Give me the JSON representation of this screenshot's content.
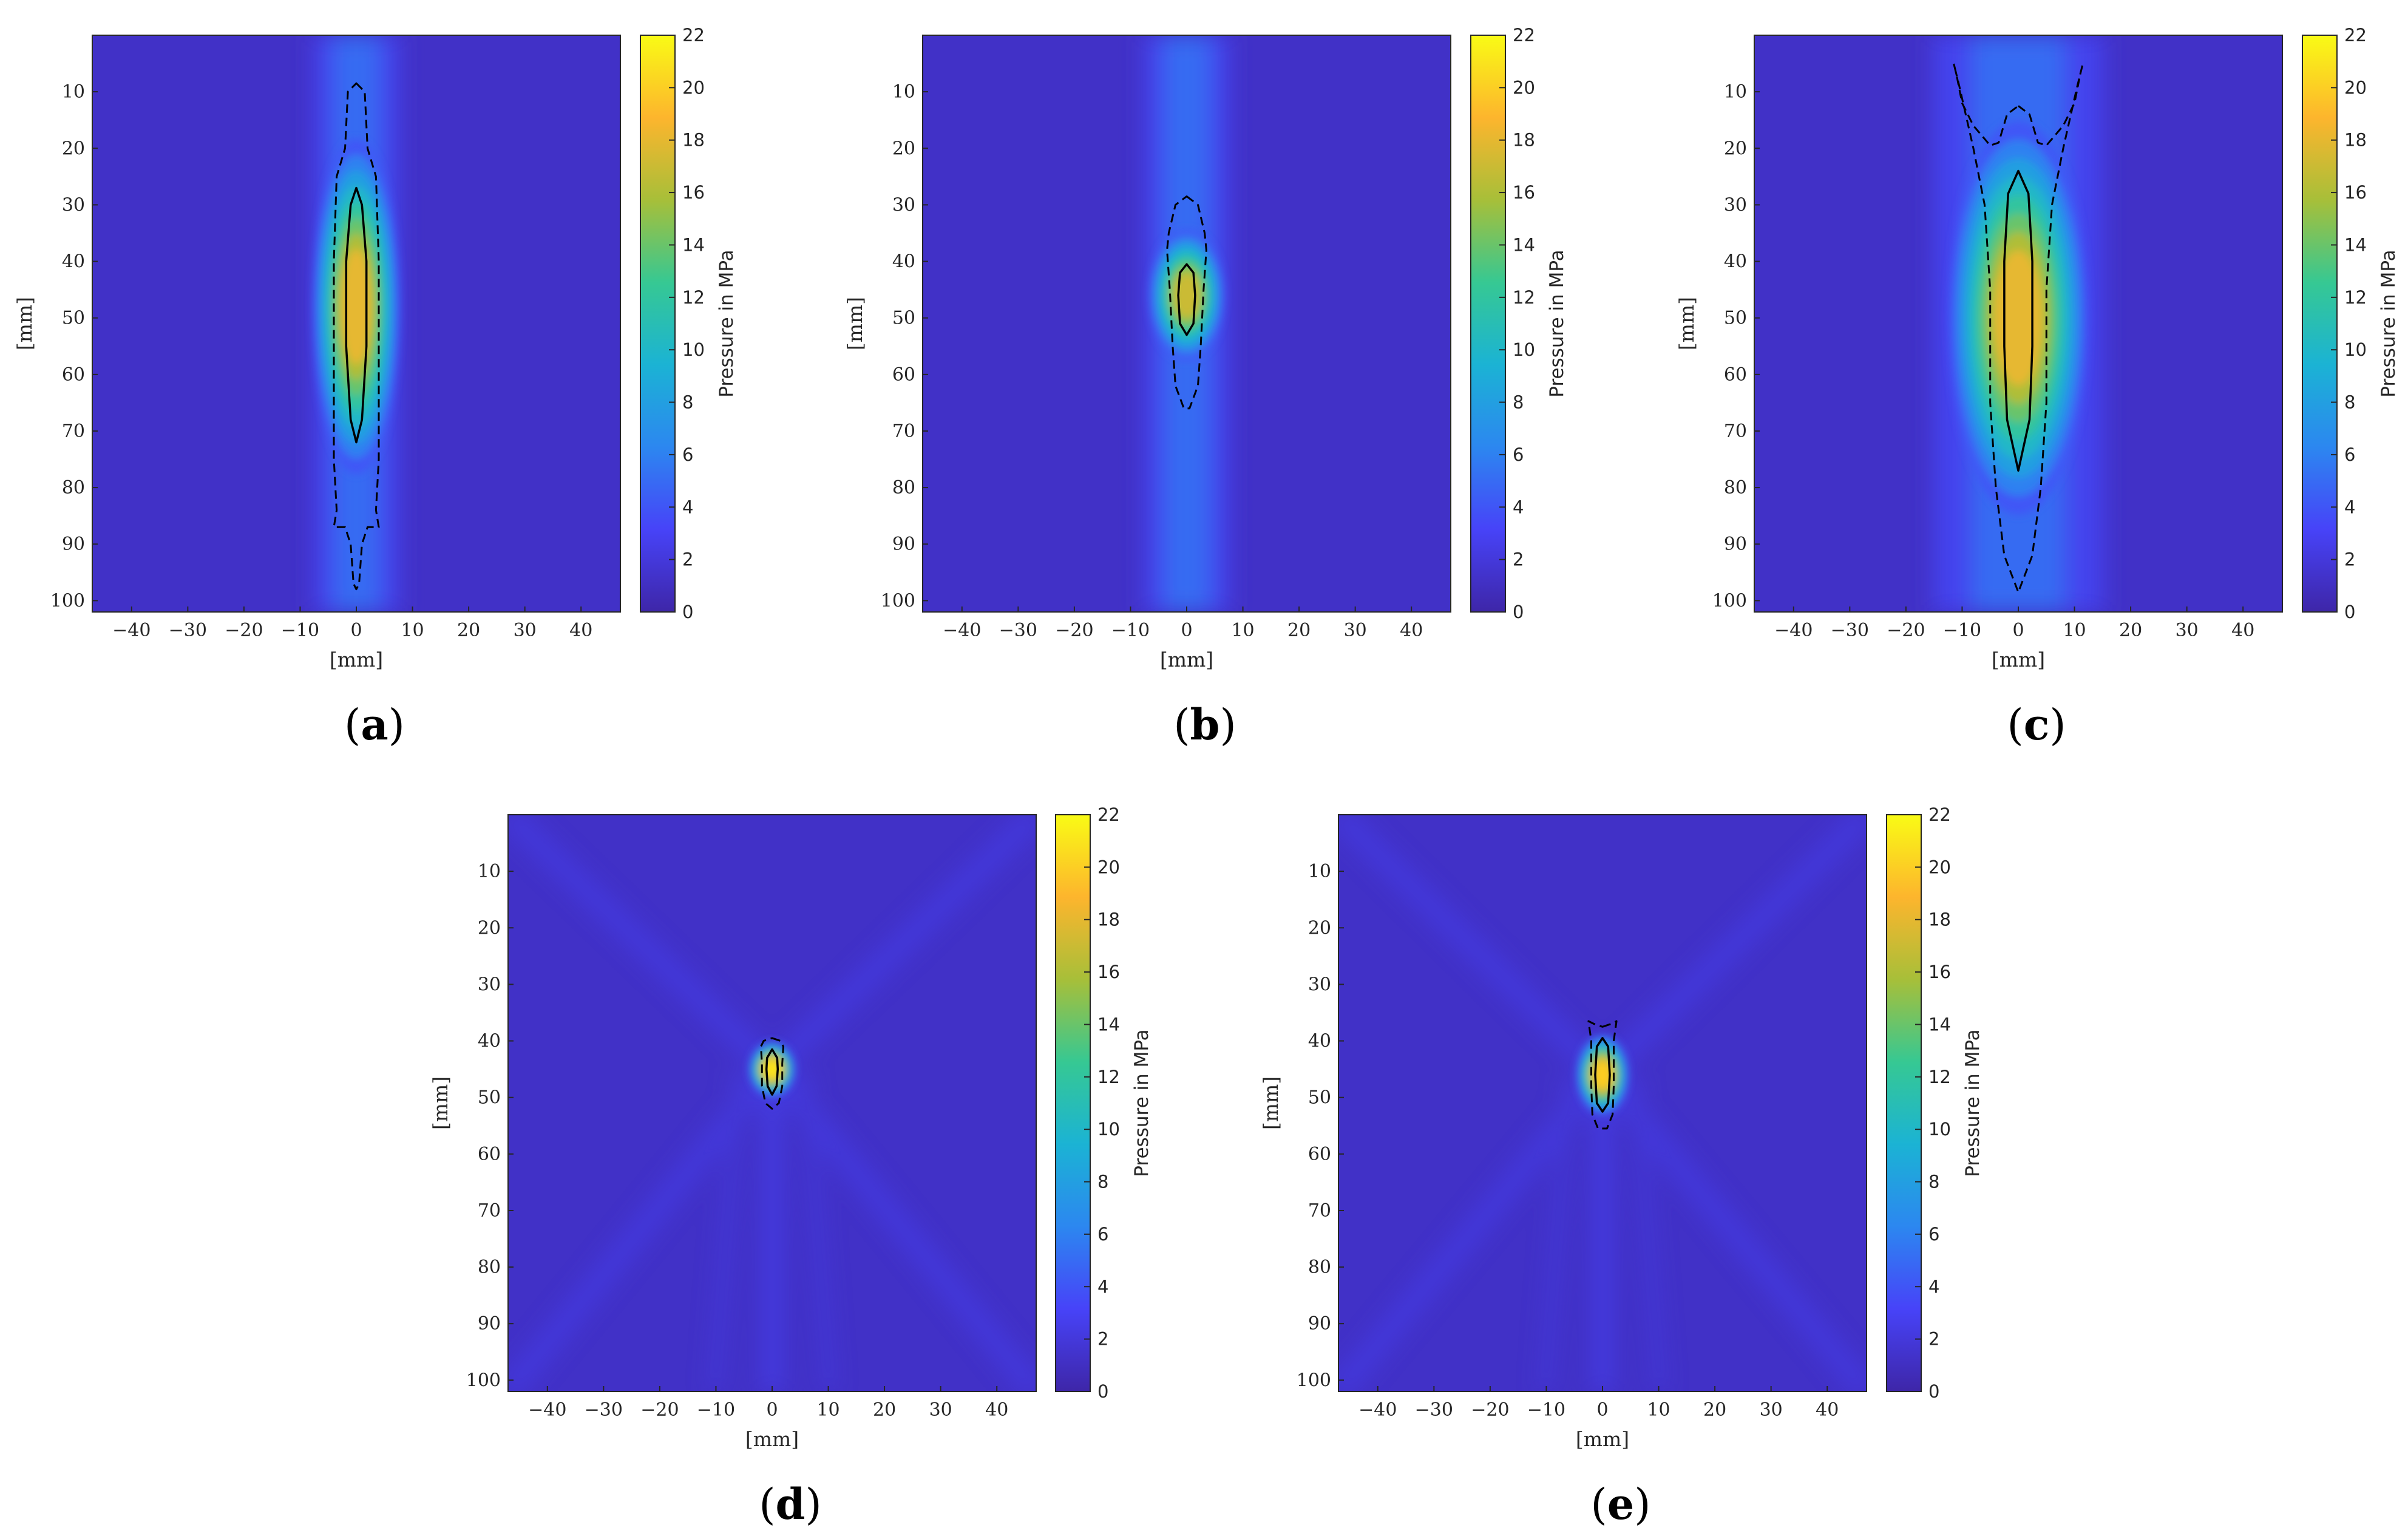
{
  "colors": {
    "cmap": [
      "#3e26a8",
      "#4743f8",
      "#2c87f0",
      "#1bb3d4",
      "#36c893",
      "#a7bf39",
      "#fdb52d",
      "#f9fb15"
    ],
    "contour": "#000000"
  },
  "chart_data": [
    {
      "type": "heatmap",
      "label": "(a)",
      "label_letter": "a",
      "xlabel": "[mm]",
      "ylabel": "[mm]",
      "cbar_label": "Pressure in MPa",
      "xlim": [
        -47,
        47
      ],
      "ylim": [
        102,
        0
      ],
      "clim": [
        0,
        22
      ],
      "xticks": [
        -40,
        -30,
        -20,
        -10,
        0,
        10,
        20,
        30,
        40
      ],
      "yticks": [
        10,
        20,
        30,
        40,
        50,
        60,
        70,
        80,
        90,
        100
      ],
      "cticks": [
        0,
        2,
        4,
        6,
        8,
        10,
        12,
        14,
        16,
        18,
        20,
        22
      ],
      "focus": {
        "x": 0,
        "y": 48,
        "peak": 18
      },
      "contour_solid": [
        [
          0,
          27
        ],
        [
          1,
          30
        ],
        [
          1.8,
          40
        ],
        [
          1.8,
          55
        ],
        [
          1,
          68
        ],
        [
          0,
          72
        ],
        [
          -1,
          68
        ],
        [
          -1.8,
          55
        ],
        [
          -1.8,
          40
        ],
        [
          -1,
          30
        ]
      ],
      "contour_dashed": [
        [
          0,
          8.5
        ],
        [
          1.5,
          10
        ],
        [
          2,
          20
        ],
        [
          3.5,
          25
        ],
        [
          4,
          40
        ],
        [
          4,
          60
        ],
        [
          4,
          75
        ],
        [
          3.5,
          84
        ],
        [
          4,
          87
        ],
        [
          2,
          87
        ],
        [
          1,
          90
        ],
        [
          0.5,
          97
        ],
        [
          0,
          98
        ],
        [
          -0.5,
          97
        ],
        [
          -1,
          90
        ],
        [
          -2,
          87
        ],
        [
          -4,
          87
        ],
        [
          -3.5,
          84
        ],
        [
          -4,
          75
        ],
        [
          -4,
          60
        ],
        [
          -4,
          40
        ],
        [
          -3.5,
          25
        ],
        [
          -2,
          20
        ],
        [
          -1.5,
          10
        ]
      ]
    },
    {
      "type": "heatmap",
      "label": "(b)",
      "label_letter": "b",
      "xlabel": "[mm]",
      "ylabel": "[mm]",
      "cbar_label": "Pressure in MPa",
      "xlim": [
        -47,
        47
      ],
      "ylim": [
        102,
        0
      ],
      "clim": [
        0,
        22
      ],
      "xticks": [
        -40,
        -30,
        -20,
        -10,
        0,
        10,
        20,
        30,
        40
      ],
      "yticks": [
        10,
        20,
        30,
        40,
        50,
        60,
        70,
        80,
        90,
        100
      ],
      "cticks": [
        0,
        2,
        4,
        6,
        8,
        10,
        12,
        14,
        16,
        18,
        20,
        22
      ],
      "focus": {
        "x": 0,
        "y": 46,
        "peak": 17
      },
      "contour_solid": [
        [
          0,
          40.5
        ],
        [
          1.2,
          42
        ],
        [
          1.5,
          46
        ],
        [
          1.2,
          51
        ],
        [
          0,
          53
        ],
        [
          -1.2,
          51
        ],
        [
          -1.5,
          46
        ],
        [
          -1.2,
          42
        ]
      ],
      "contour_dashed": [
        [
          0,
          28.5
        ],
        [
          2,
          30
        ],
        [
          3.2,
          35
        ],
        [
          3.5,
          38
        ],
        [
          3,
          45
        ],
        [
          2.5,
          55
        ],
        [
          2,
          62
        ],
        [
          0.5,
          66
        ],
        [
          -0.5,
          66
        ],
        [
          -2,
          62
        ],
        [
          -2.5,
          55
        ],
        [
          -3,
          45
        ],
        [
          -3.5,
          38
        ],
        [
          -3.2,
          35
        ],
        [
          -2,
          30
        ]
      ]
    },
    {
      "type": "heatmap",
      "label": "(c)",
      "label_letter": "c",
      "xlabel": "[mm]",
      "ylabel": "[mm]",
      "cbar_label": "Pressure in MPa",
      "xlim": [
        -47,
        47
      ],
      "ylim": [
        102,
        0
      ],
      "clim": [
        0,
        22
      ],
      "xticks": [
        -40,
        -30,
        -20,
        -10,
        0,
        10,
        20,
        30,
        40
      ],
      "yticks": [
        10,
        20,
        30,
        40,
        50,
        60,
        70,
        80,
        90,
        100
      ],
      "cticks": [
        0,
        2,
        4,
        6,
        8,
        10,
        12,
        14,
        16,
        18,
        20,
        22
      ],
      "focus": {
        "x": 0,
        "y": 50,
        "peak": 18
      },
      "contour_solid": [
        [
          0,
          24
        ],
        [
          1.8,
          28
        ],
        [
          2.5,
          40
        ],
        [
          2.5,
          55
        ],
        [
          2,
          68
        ],
        [
          0,
          77
        ],
        [
          -2,
          68
        ],
        [
          -2.5,
          55
        ],
        [
          -2.5,
          40
        ],
        [
          -1.8,
          28
        ]
      ],
      "contour_dashed": [
        [
          0,
          12.5
        ],
        [
          2,
          14
        ],
        [
          3.5,
          19
        ],
        [
          5,
          19.5
        ],
        [
          8,
          16
        ],
        [
          10,
          12
        ],
        [
          11,
          7
        ],
        [
          11.5,
          5
        ],
        [
          10.5,
          9
        ],
        [
          8,
          20
        ],
        [
          6,
          30
        ],
        [
          5,
          45
        ],
        [
          5,
          65
        ],
        [
          4,
          80
        ],
        [
          2.5,
          92
        ],
        [
          0,
          98.5
        ],
        [
          -2.5,
          92
        ],
        [
          -4,
          80
        ],
        [
          -5,
          65
        ],
        [
          -5,
          45
        ],
        [
          -6,
          30
        ],
        [
          -8,
          20
        ],
        [
          -10.5,
          9
        ],
        [
          -11.5,
          5
        ],
        [
          -11,
          7
        ],
        [
          -10,
          12
        ],
        [
          -8,
          16
        ],
        [
          -5,
          19.5
        ],
        [
          -3.5,
          19
        ],
        [
          -2,
          14
        ]
      ]
    },
    {
      "type": "heatmap",
      "label": "(d)",
      "label_letter": "d",
      "xlabel": "[mm]",
      "ylabel": "[mm]",
      "cbar_label": "Pressure in MPa",
      "xlim": [
        -47,
        47
      ],
      "ylim": [
        102,
        0
      ],
      "clim": [
        0,
        22
      ],
      "xticks": [
        -40,
        -30,
        -20,
        -10,
        0,
        10,
        20,
        30,
        40
      ],
      "yticks": [
        10,
        20,
        30,
        40,
        50,
        60,
        70,
        80,
        90,
        100
      ],
      "cticks": [
        0,
        2,
        4,
        6,
        8,
        10,
        12,
        14,
        16,
        18,
        20,
        22
      ],
      "focus": {
        "x": 0,
        "y": 45,
        "peak": 21
      },
      "contour_solid": [
        [
          0,
          41.5
        ],
        [
          0.9,
          43
        ],
        [
          1,
          45
        ],
        [
          0.8,
          48
        ],
        [
          0,
          49.5
        ],
        [
          -0.8,
          48
        ],
        [
          -1,
          45
        ],
        [
          -0.9,
          43
        ]
      ],
      "contour_dashed": [
        [
          0,
          39.5
        ],
        [
          1.5,
          40
        ],
        [
          2,
          41
        ],
        [
          1.8,
          44
        ],
        [
          1.8,
          48
        ],
        [
          1.2,
          51
        ],
        [
          0,
          52
        ],
        [
          -1.2,
          51
        ],
        [
          -1.8,
          48
        ],
        [
          -1.8,
          44
        ],
        [
          -2,
          41
        ],
        [
          -1.5,
          40
        ]
      ]
    },
    {
      "type": "heatmap",
      "label": "(e)",
      "label_letter": "e",
      "xlabel": "[mm]",
      "ylabel": "[mm]",
      "cbar_label": "Pressure in MPa",
      "xlim": [
        -47,
        47
      ],
      "ylim": [
        102,
        0
      ],
      "clim": [
        0,
        22
      ],
      "xticks": [
        -40,
        -30,
        -20,
        -10,
        0,
        10,
        20,
        30,
        40
      ],
      "yticks": [
        10,
        20,
        30,
        40,
        50,
        60,
        70,
        80,
        90,
        100
      ],
      "cticks": [
        0,
        2,
        4,
        6,
        8,
        10,
        12,
        14,
        16,
        18,
        20,
        22
      ],
      "focus": {
        "x": 0,
        "y": 46,
        "peak": 20
      },
      "contour_solid": [
        [
          0,
          39.5
        ],
        [
          1,
          41
        ],
        [
          1.3,
          46
        ],
        [
          1,
          51
        ],
        [
          0,
          52.5
        ],
        [
          -1,
          51
        ],
        [
          -1.3,
          46
        ],
        [
          -1,
          41
        ]
      ],
      "contour_dashed": [
        [
          0,
          37.5
        ],
        [
          1.5,
          37
        ],
        [
          2.5,
          36.5
        ],
        [
          2,
          40
        ],
        [
          2,
          48
        ],
        [
          1.8,
          53
        ],
        [
          0.8,
          55.5
        ],
        [
          -0.8,
          55.5
        ],
        [
          -1.8,
          53
        ],
        [
          -2,
          48
        ],
        [
          -2,
          40
        ],
        [
          -2.5,
          36.5
        ],
        [
          -1.5,
          37
        ]
      ]
    }
  ]
}
